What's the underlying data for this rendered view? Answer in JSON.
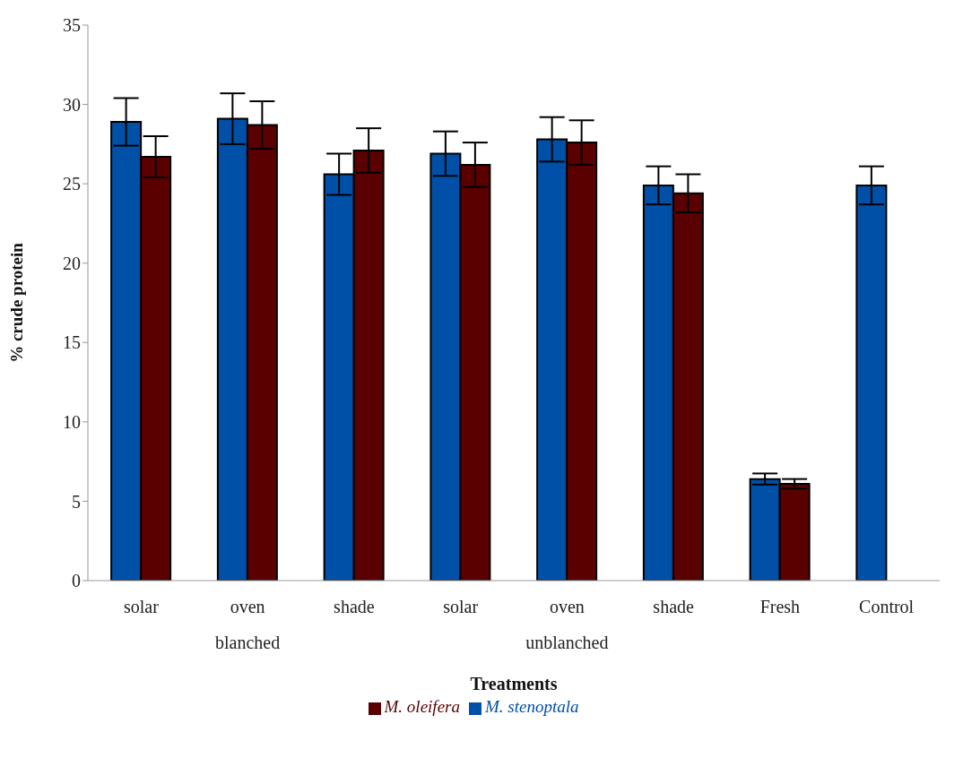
{
  "chart_data": {
    "type": "bar",
    "ylabel": "% crude protein",
    "xlabel": "Treatments",
    "categories": [
      "solar",
      "oven",
      "shade",
      "solar",
      "oven",
      "shade",
      "Fresh",
      "Control"
    ],
    "series": [
      {
        "name": "M. stenoptala",
        "color": "#0050a8",
        "values": [
          28.9,
          29.1,
          25.6,
          26.9,
          27.8,
          24.9,
          6.4,
          24.9
        ],
        "errors": [
          1.5,
          1.6,
          1.3,
          1.4,
          1.4,
          1.2,
          0.35,
          1.2
        ]
      },
      {
        "name": "M. oleifera",
        "color": "#5a0000",
        "values": [
          26.7,
          28.7,
          27.1,
          26.2,
          27.6,
          24.4,
          6.1,
          null
        ],
        "errors": [
          1.3,
          1.5,
          1.4,
          1.4,
          1.4,
          1.2,
          0.3,
          null
        ]
      }
    ],
    "annotations": [
      "blanched",
      "unblanched"
    ],
    "ylim": [
      0,
      35
    ],
    "yticks": [
      0,
      5,
      10,
      15,
      20,
      25,
      30,
      35
    ],
    "grid": false,
    "legend": "bottom"
  }
}
